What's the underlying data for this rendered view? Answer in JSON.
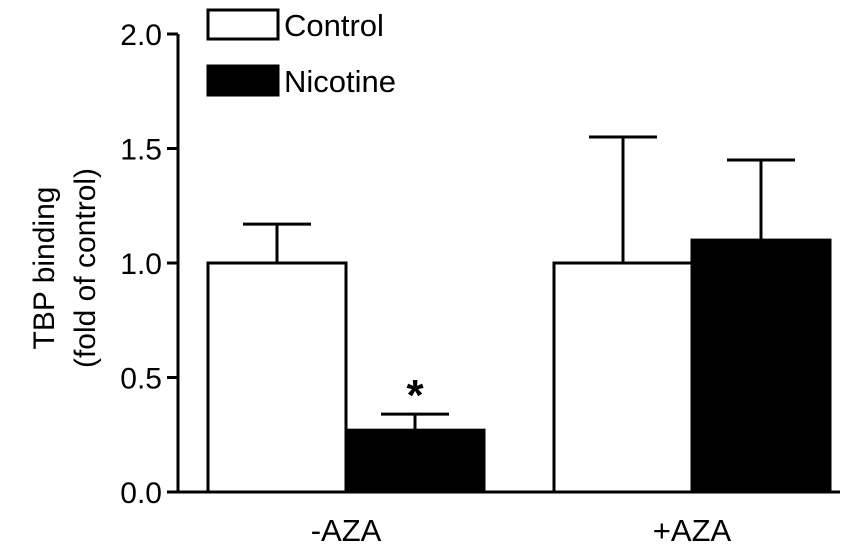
{
  "chart_data": {
    "type": "bar",
    "categories": [
      "-AZA",
      "+AZA"
    ],
    "series": [
      {
        "name": "Control",
        "values": [
          1.0,
          1.0
        ],
        "errors": [
          0.17,
          0.55
        ],
        "color": "#ffffff"
      },
      {
        "name": "Nicotine",
        "values": [
          0.27,
          1.1
        ],
        "errors": [
          0.07,
          0.35
        ],
        "color": "#000000"
      }
    ],
    "ylabel_line1": "TBP binding",
    "ylabel_line2": "(fold of control)",
    "ylim": [
      0,
      2.0
    ],
    "yticks": [
      "0.0",
      "0.5",
      "1.0",
      "1.5",
      "2.0"
    ],
    "annotations": [
      {
        "text": "*",
        "category": "-AZA",
        "series": "Nicotine"
      }
    ],
    "legend_position": "top-left",
    "grid": false
  }
}
